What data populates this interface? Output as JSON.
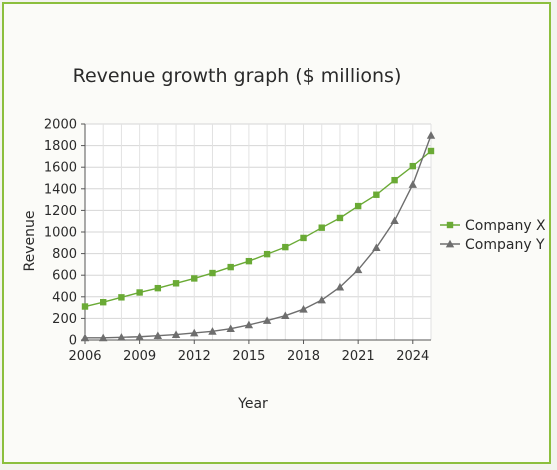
{
  "chart_data": {
    "type": "line",
    "title": "Revenue growth graph ($ millions)",
    "xlabel": "Year",
    "ylabel": "Revenue",
    "xlim": [
      2006,
      2025
    ],
    "ylim": [
      0,
      2000
    ],
    "x_ticks": [
      "2006",
      "2009",
      "2012",
      "2015",
      "2018",
      "2021",
      "2024"
    ],
    "y_ticks": [
      "0",
      "200",
      "400",
      "600",
      "800",
      "1000",
      "1200",
      "1400",
      "1600",
      "1800",
      "2000"
    ],
    "grid": true,
    "legend_position": "right",
    "x": [
      2006,
      2007,
      2008,
      2009,
      2010,
      2011,
      2012,
      2013,
      2014,
      2015,
      2016,
      2017,
      2018,
      2019,
      2020,
      2021,
      2022,
      2023,
      2024,
      2025
    ],
    "series": [
      {
        "name": "Company X",
        "color": "#6aaa35",
        "marker": "square",
        "values": [
          310,
          350,
          395,
          440,
          480,
          525,
          570,
          620,
          675,
          730,
          795,
          860,
          945,
          1040,
          1130,
          1240,
          1345,
          1480,
          1610,
          1750
        ]
      },
      {
        "name": "Company Y",
        "color": "#6e6e6e",
        "marker": "triangle",
        "values": [
          20,
          20,
          25,
          30,
          40,
          50,
          65,
          80,
          105,
          140,
          180,
          225,
          285,
          370,
          490,
          650,
          855,
          1105,
          1440,
          1895
        ]
      }
    ]
  }
}
